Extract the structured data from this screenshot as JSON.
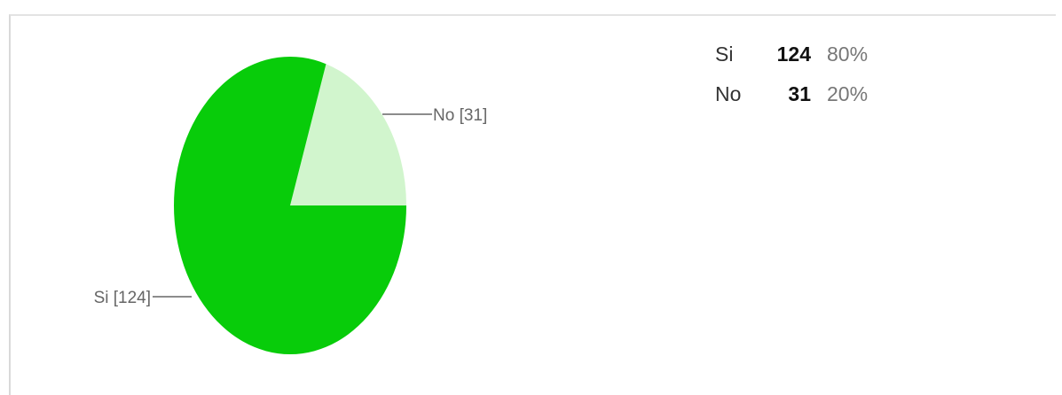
{
  "chart_data": {
    "type": "pie",
    "title": "",
    "slices": [
      {
        "label": "Si",
        "count": 124,
        "percent": "80%",
        "callout": "Si [124]",
        "color": "#08cc0a"
      },
      {
        "label": "No",
        "count": 31,
        "percent": "20%",
        "callout": "No [31]",
        "color": "#d1f5cd"
      }
    ],
    "legend_placement": "right"
  },
  "summary": {
    "rows": [
      {
        "label": "Si",
        "count": "124",
        "percent": "80%"
      },
      {
        "label": "No",
        "count": "31",
        "percent": "20%"
      }
    ]
  }
}
